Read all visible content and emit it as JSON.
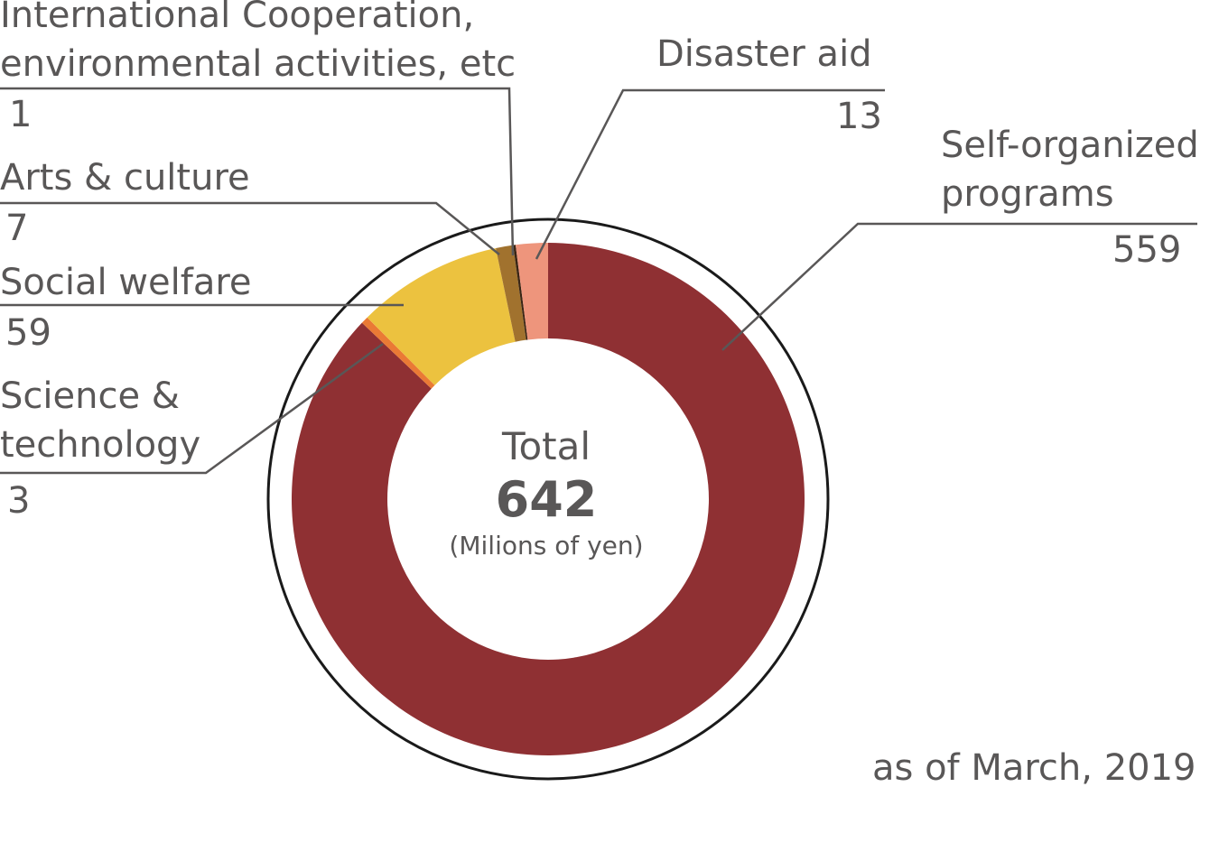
{
  "chart_data": {
    "type": "pie",
    "variant": "donut",
    "slices": [
      {
        "name": "Self-organized\nprograms",
        "value": 559,
        "color": "#8f3033"
      },
      {
        "name": "Science &\ntechnology",
        "value": 3,
        "color": "#ea7a35"
      },
      {
        "name": "Social welfare",
        "value": 59,
        "color": "#ecc23f"
      },
      {
        "name": "Arts & culture",
        "value": 7,
        "color": "#a1722e"
      },
      {
        "name": "International Cooperation,\nenvironmental activities, etc",
        "value": 1,
        "color": "#3a2514"
      },
      {
        "name": "Disaster aid",
        "value": 13,
        "color": "#ee957c"
      }
    ],
    "center": {
      "title": "Total",
      "value": "642",
      "unit": "(Milions of yen)"
    },
    "note": "as of March, 2019",
    "start_angle_deg": 0,
    "direction": "clockwise"
  }
}
